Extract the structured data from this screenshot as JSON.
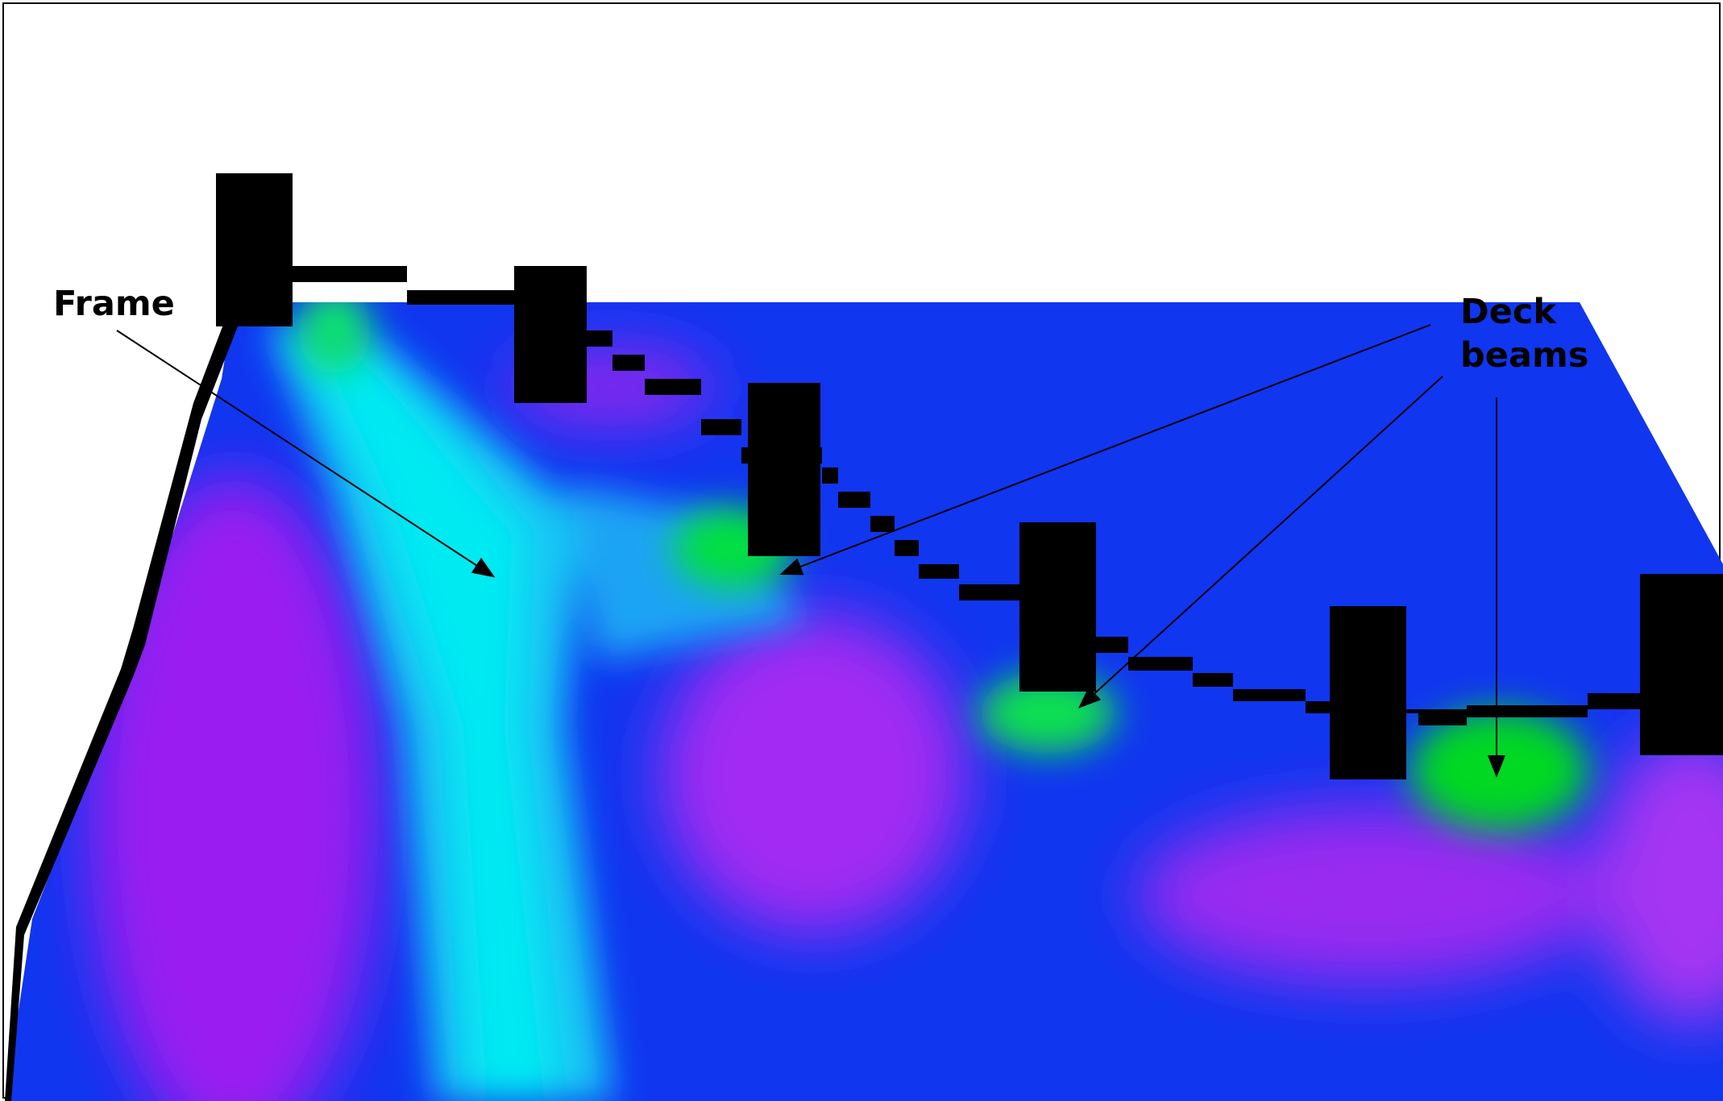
{
  "labels": {
    "frame": "Frame",
    "deck_beams_line1": "Deck",
    "deck_beams_line2": "beams"
  },
  "colors": {
    "background": "#ffffff",
    "section_outline": "#000000",
    "low_stress": "#9a1cf0",
    "mid_stress": "#1036f0",
    "high_stress": "#00e8f0",
    "peak_stress": "#00e020",
    "arrow": "#000000"
  }
}
